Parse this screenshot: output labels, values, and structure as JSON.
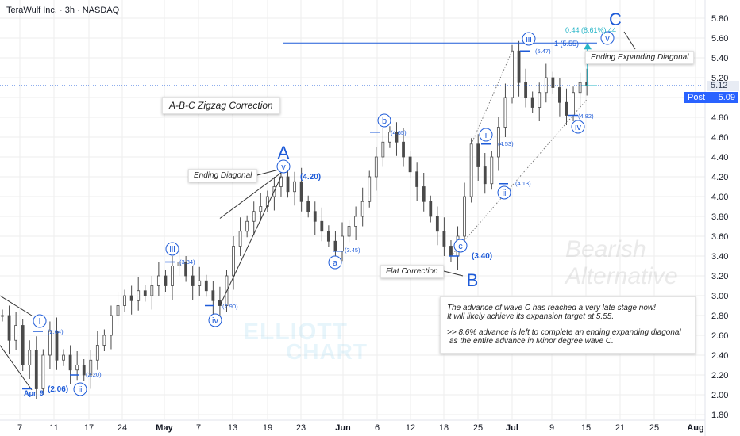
{
  "title": "TeraWulf Inc. · 3h · NASDAQ",
  "colors": {
    "wave": "#1e5bd8",
    "accent": "#26b5c7",
    "grid": "#eeeeee",
    "text": "#131722",
    "post_bg": "#2962ff"
  },
  "chart_data": {
    "type": "candlestick",
    "y_axis": {
      "ticks": [
        "5.80",
        "5.60",
        "5.40",
        "5.20",
        "5.00",
        "4.80",
        "4.60",
        "4.40",
        "4.20",
        "4.00",
        "3.80",
        "3.60",
        "3.40",
        "3.20",
        "3.00",
        "2.80",
        "2.60",
        "2.40",
        "2.20",
        "2.00",
        "1.80"
      ],
      "range": [
        1.75,
        5.9
      ]
    },
    "x_axis": {
      "ticks": [
        "7",
        "11",
        "17",
        "24",
        "May",
        "7",
        "13",
        "19",
        "23",
        "Jun",
        "6",
        "12",
        "18",
        "25",
        "Jul",
        "9",
        "15",
        "21",
        "25",
        "Aug"
      ]
    },
    "path": [
      [
        0,
        2.8
      ],
      [
        1,
        2.55
      ],
      [
        2,
        2.7
      ],
      [
        3,
        2.3
      ],
      [
        4,
        2.45
      ],
      [
        5,
        2.06
      ],
      [
        6,
        2.4
      ],
      [
        7,
        2.64
      ],
      [
        8,
        2.35
      ],
      [
        9,
        2.4
      ],
      [
        10,
        2.25
      ],
      [
        11,
        2.3
      ],
      [
        12,
        2.2
      ],
      [
        13,
        2.35
      ],
      [
        14,
        2.5
      ],
      [
        15,
        2.6
      ],
      [
        16,
        2.8
      ],
      [
        17,
        2.9
      ],
      [
        18,
        3.0
      ],
      [
        19,
        2.95
      ],
      [
        20,
        3.05
      ],
      [
        21,
        3.0
      ],
      [
        22,
        3.1
      ],
      [
        23,
        3.2
      ],
      [
        24,
        3.1
      ],
      [
        25,
        3.3
      ],
      [
        26,
        3.34
      ],
      [
        27,
        3.2
      ],
      [
        28,
        3.1
      ],
      [
        29,
        3.15
      ],
      [
        30,
        3.05
      ],
      [
        31,
        2.95
      ],
      [
        32,
        2.9
      ],
      [
        33,
        3.2
      ],
      [
        34,
        3.5
      ],
      [
        35,
        3.65
      ],
      [
        36,
        3.75
      ],
      [
        37,
        3.85
      ],
      [
        38,
        3.9
      ],
      [
        39,
        4.0
      ],
      [
        40,
        4.1
      ],
      [
        41,
        4.2
      ],
      [
        42,
        4.05
      ],
      [
        43,
        4.15
      ],
      [
        44,
        3.95
      ],
      [
        45,
        3.85
      ],
      [
        46,
        3.75
      ],
      [
        47,
        3.65
      ],
      [
        48,
        3.55
      ],
      [
        49,
        3.45
      ],
      [
        50,
        3.6
      ],
      [
        51,
        3.7
      ],
      [
        52,
        3.8
      ],
      [
        53,
        3.95
      ],
      [
        54,
        4.2
      ],
      [
        55,
        4.4
      ],
      [
        56,
        4.55
      ],
      [
        57,
        4.65
      ],
      [
        58,
        4.55
      ],
      [
        59,
        4.4
      ],
      [
        60,
        4.25
      ],
      [
        61,
        4.1
      ],
      [
        62,
        3.95
      ],
      [
        63,
        3.8
      ],
      [
        64,
        3.65
      ],
      [
        65,
        3.5
      ],
      [
        66,
        3.4
      ],
      [
        67,
        3.6
      ],
      [
        68,
        4.0
      ],
      [
        69,
        4.53
      ],
      [
        70,
        4.3
      ],
      [
        71,
        4.13
      ],
      [
        72,
        4.4
      ],
      [
        73,
        4.7
      ],
      [
        74,
        5.0
      ],
      [
        75,
        5.47
      ],
      [
        76,
        5.15
      ],
      [
        77,
        5.0
      ],
      [
        78,
        4.9
      ],
      [
        79,
        5.05
      ],
      [
        80,
        5.2
      ],
      [
        81,
        5.1
      ],
      [
        82,
        4.95
      ],
      [
        83,
        4.82
      ],
      [
        84,
        5.05
      ],
      [
        85,
        5.15
      ],
      [
        86,
        5.12
      ]
    ],
    "levels": {
      "target": 5.55,
      "current": 5.12,
      "post": 5.09
    },
    "wave_labels": [
      {
        "text": "A",
        "type": "letter"
      },
      {
        "text": "B",
        "type": "letter"
      },
      {
        "text": "C",
        "type": "letter"
      },
      {
        "text": "a",
        "type": "circle"
      },
      {
        "text": "b",
        "type": "circle"
      },
      {
        "text": "c",
        "type": "circle"
      },
      {
        "text": "i",
        "type": "circle"
      },
      {
        "text": "ii",
        "type": "circle"
      },
      {
        "text": "iii",
        "type": "circle"
      },
      {
        "text": "iv",
        "type": "circle"
      },
      {
        "text": "v",
        "type": "circle"
      },
      {
        "text": "i",
        "type": "circle"
      },
      {
        "text": "ii",
        "type": "circle"
      },
      {
        "text": "iii",
        "type": "circle"
      },
      {
        "text": "iv",
        "type": "circle"
      },
      {
        "text": "v",
        "type": "circle"
      }
    ],
    "price_labels": [
      "(2.64)",
      "(2.06)",
      "(2.20)",
      "(3.34)",
      "(2.90)",
      "(4.20)",
      "(3.45)",
      "(4.65)",
      "(3.40)",
      "(4.53)",
      "(4.13)",
      "(5.47)",
      "(4.82)"
    ],
    "level_labels": {
      "target_label": "1 (5.55)",
      "advance_label": "0.44 (8.61%) 44",
      "apr_label": "Apr. 9",
      "current_price": "5.12",
      "post_label": "Post",
      "post_price": "5.09"
    },
    "callouts": {
      "zigzag": "A-B-C Zigzag Correction",
      "ending_diagonal": "Ending Diagonal",
      "ending_expanding": "Ending Expanding Diagonal",
      "flat": "Flat Correction",
      "info_line1": "The advance of wave C has reached a very late stage now!",
      "info_line2": "It will likely achieve its expansion target at 5.55.",
      "info_line3": ">> 8.6% advance is left to complete an ending expanding diagonal",
      "info_line4": "as the entire advance in Minor degree wave C."
    },
    "watermarks": {
      "bearish": "Bearish",
      "alternative": "Alternative",
      "elliott": "ELLIOTT",
      "chart": "CHART"
    }
  }
}
